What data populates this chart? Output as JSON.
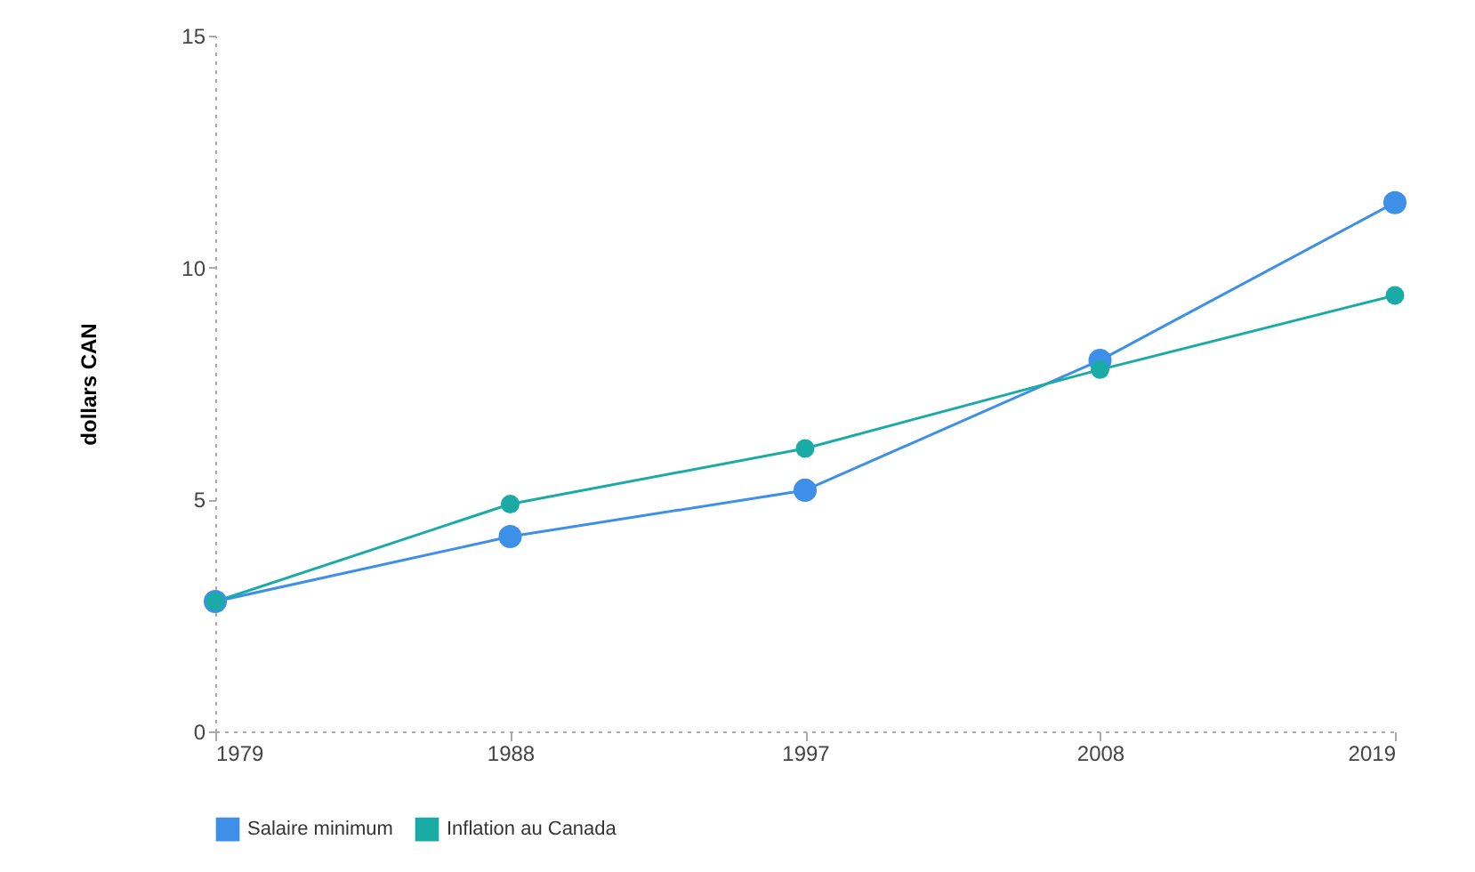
{
  "chart_data": {
    "type": "line",
    "ylabel": "dollars CAN",
    "categories": [
      "1979",
      "1988",
      "1997",
      "2008",
      "2019"
    ],
    "series": [
      {
        "name": "Salaire minimum",
        "color": "#3d8fe8",
        "values": [
          2.8,
          4.2,
          5.2,
          8.0,
          11.4
        ]
      },
      {
        "name": "Inflation au Canada",
        "color": "#1aaba6",
        "values": [
          2.8,
          4.9,
          6.1,
          7.8,
          9.4
        ]
      }
    ],
    "ylim": [
      0,
      15
    ],
    "yticks": [
      0,
      5,
      10,
      15
    ],
    "grid": false,
    "legend": "bottom",
    "marker": "circle",
    "line_style": "solid"
  }
}
